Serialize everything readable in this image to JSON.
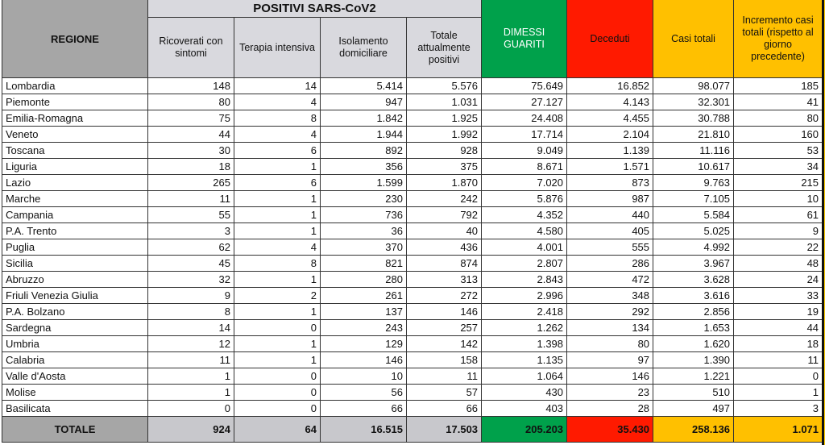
{
  "header": {
    "regione": "REGIONE",
    "positivi": "POSITIVI SARS-CoV2",
    "ricoverati": "Ricoverati con sintomi",
    "terapia": "Terapia intensiva",
    "isolamento": "Isolamento domiciliare",
    "totale_pos": "Totale attualmente positivi",
    "dimessi": "DIMESSI GUARITI",
    "deceduti": "Deceduti",
    "casi": "Casi totali",
    "incremento": "Incremento casi totali (rispetto al giorno precedente)"
  },
  "colors": {
    "gray": "#a6a6a6",
    "light_gray": "#d9d9de",
    "green": "#00a14b",
    "red": "#ff1a00",
    "orange": "#ffc000"
  },
  "rows": [
    [
      "Lombardia",
      "148",
      "14",
      "5.414",
      "5.576",
      "75.649",
      "16.852",
      "98.077",
      "185"
    ],
    [
      "Piemonte",
      "80",
      "4",
      "947",
      "1.031",
      "27.127",
      "4.143",
      "32.301",
      "41"
    ],
    [
      "Emilia-Romagna",
      "75",
      "8",
      "1.842",
      "1.925",
      "24.408",
      "4.455",
      "30.788",
      "80"
    ],
    [
      "Veneto",
      "44",
      "4",
      "1.944",
      "1.992",
      "17.714",
      "2.104",
      "21.810",
      "160"
    ],
    [
      "Toscana",
      "30",
      "6",
      "892",
      "928",
      "9.049",
      "1.139",
      "11.116",
      "53"
    ],
    [
      "Liguria",
      "18",
      "1",
      "356",
      "375",
      "8.671",
      "1.571",
      "10.617",
      "34"
    ],
    [
      "Lazio",
      "265",
      "6",
      "1.599",
      "1.870",
      "7.020",
      "873",
      "9.763",
      "215"
    ],
    [
      "Marche",
      "11",
      "1",
      "230",
      "242",
      "5.876",
      "987",
      "7.105",
      "10"
    ],
    [
      "Campania",
      "55",
      "1",
      "736",
      "792",
      "4.352",
      "440",
      "5.584",
      "61"
    ],
    [
      "P.A. Trento",
      "3",
      "1",
      "36",
      "40",
      "4.580",
      "405",
      "5.025",
      "9"
    ],
    [
      "Puglia",
      "62",
      "4",
      "370",
      "436",
      "4.001",
      "555",
      "4.992",
      "22"
    ],
    [
      "Sicilia",
      "45",
      "8",
      "821",
      "874",
      "2.807",
      "286",
      "3.967",
      "48"
    ],
    [
      "Abruzzo",
      "32",
      "1",
      "280",
      "313",
      "2.843",
      "472",
      "3.628",
      "24"
    ],
    [
      "Friuli Venezia Giulia",
      "9",
      "2",
      "261",
      "272",
      "2.996",
      "348",
      "3.616",
      "33"
    ],
    [
      "P.A. Bolzano",
      "8",
      "1",
      "137",
      "146",
      "2.418",
      "292",
      "2.856",
      "19"
    ],
    [
      "Sardegna",
      "14",
      "0",
      "243",
      "257",
      "1.262",
      "134",
      "1.653",
      "44"
    ],
    [
      "Umbria",
      "12",
      "1",
      "129",
      "142",
      "1.398",
      "80",
      "1.620",
      "18"
    ],
    [
      "Calabria",
      "11",
      "1",
      "146",
      "158",
      "1.135",
      "97",
      "1.390",
      "11"
    ],
    [
      "Valle d'Aosta",
      "1",
      "0",
      "10",
      "11",
      "1.064",
      "146",
      "1.221",
      "0"
    ],
    [
      "Molise",
      "1",
      "0",
      "56",
      "57",
      "430",
      "23",
      "510",
      "1"
    ],
    [
      "Basilicata",
      "0",
      "0",
      "66",
      "66",
      "403",
      "28",
      "497",
      "3"
    ]
  ],
  "totale": [
    "TOTALE",
    "924",
    "64",
    "16.515",
    "17.503",
    "205.203",
    "35.430",
    "258.136",
    "1.071"
  ]
}
